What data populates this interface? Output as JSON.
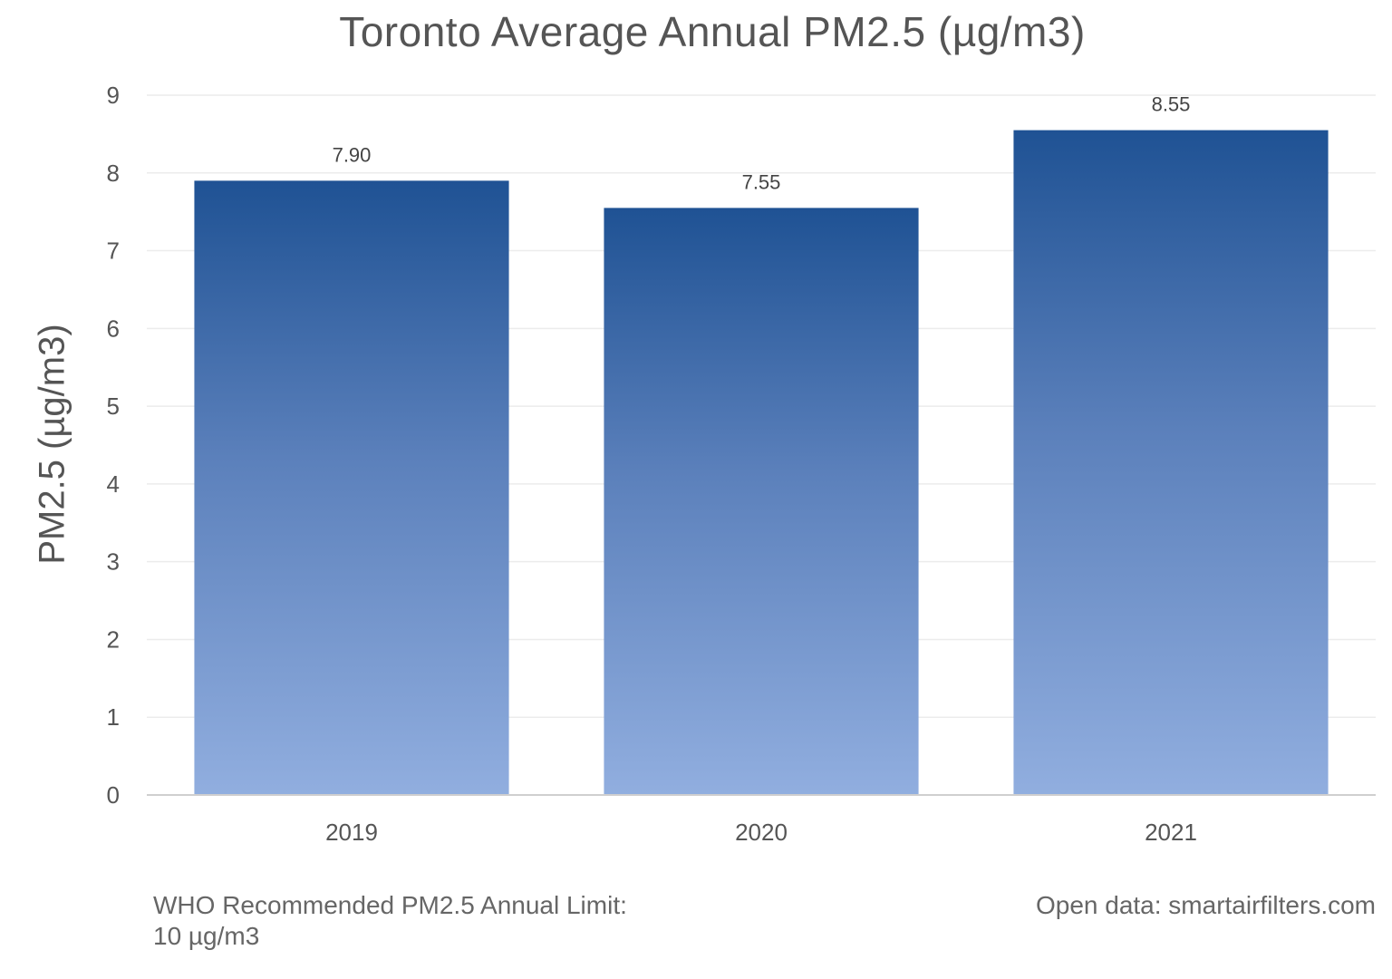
{
  "chart_data": {
    "type": "bar",
    "title": "Toronto Average Annual PM2.5 (µg/m3)",
    "xlabel": "",
    "ylabel": "PM2.5 (µg/m3)",
    "categories": [
      "2019",
      "2020",
      "2021"
    ],
    "values": [
      7.9,
      7.55,
      8.55
    ],
    "value_labels": [
      "7.90",
      "7.55",
      "8.55"
    ],
    "ylim": [
      0,
      9
    ],
    "yticks": [
      "0",
      "1",
      "2",
      "3",
      "4",
      "5",
      "6",
      "7",
      "8",
      "9"
    ],
    "grid": true,
    "legend": "none",
    "bar_color_top": "#1f5294",
    "bar_color_bottom": "#91aedf"
  },
  "footnotes": {
    "left_line1": "WHO Recommended PM2.5 Annual Limit:",
    "left_line2": "10 µg/m3",
    "right": "Open data: smartairfilters.com"
  }
}
